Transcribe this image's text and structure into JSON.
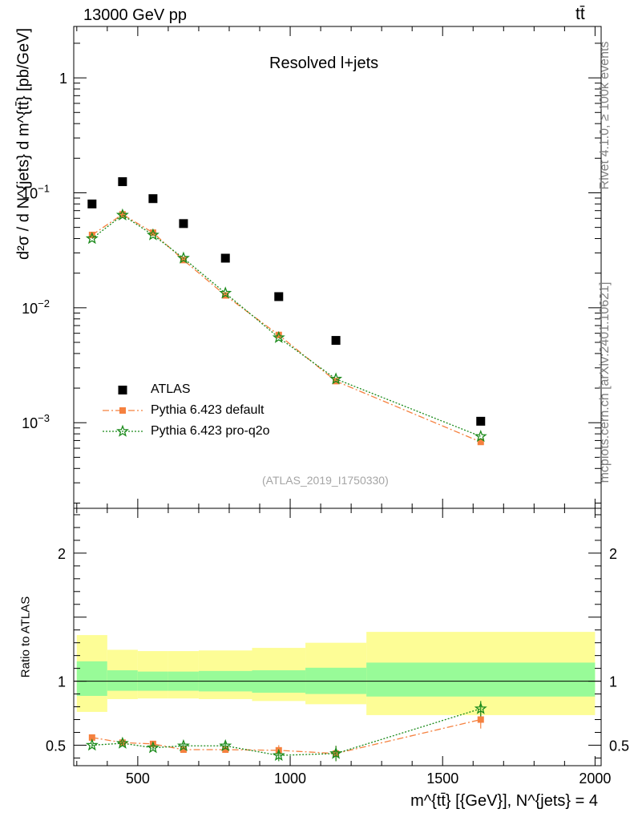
{
  "header": {
    "left": "13000 GeV pp",
    "right": "tt̄"
  },
  "side_labels": {
    "top": "Rivet 4.1.0, ≥ 100k events",
    "bottom": "mcplots.cern.ch [arXiv:2401.10621]"
  },
  "chart_data": [
    {
      "type": "scatter",
      "title": "Resolved l+jets",
      "analysis_id": "(ATLAS_2019_I1750330)",
      "xlabel": "m^{tt̄} [{GeV}], N^{jets} = 4",
      "ylabel": "d²σ / d N^{jets} d m^{tt̄} [pb/GeV]",
      "yscale": "log",
      "xlim": [
        290,
        2020
      ],
      "ylim": [
        0.00018,
        2.8
      ],
      "y_ticks": [
        {
          "value": 0.001,
          "base": "10",
          "exp": "−3"
        },
        {
          "value": 0.01,
          "base": "10",
          "exp": "−2"
        },
        {
          "value": 0.1,
          "base": "10",
          "exp": "−1"
        },
        {
          "value": 1,
          "label": "1"
        }
      ],
      "series": [
        {
          "name": "ATLAS",
          "color": "#000000",
          "marker": "square",
          "x": [
            350,
            450,
            550,
            650,
            787.5,
            962.5,
            1150,
            1625
          ],
          "y": [
            0.08,
            0.125,
            0.089,
            0.054,
            0.027,
            0.0125,
            0.0052,
            0.00103
          ]
        },
        {
          "name": "Pythia 6.423 default",
          "color": "#f5813f",
          "marker": "square",
          "line": "dashdot",
          "x": [
            350,
            450,
            550,
            650,
            787.5,
            962.5,
            1150,
            1625
          ],
          "y": [
            0.043,
            0.065,
            0.045,
            0.026,
            0.0128,
            0.0058,
            0.0023,
            0.00068
          ]
        },
        {
          "name": "Pythia 6.423 pro-q2o",
          "color": "#1a8a1a",
          "marker": "star",
          "line": "dotted",
          "x": [
            350,
            450,
            550,
            650,
            787.5,
            962.5,
            1150,
            1625
          ],
          "y": [
            0.04,
            0.064,
            0.043,
            0.027,
            0.0134,
            0.0055,
            0.0024,
            0.00076
          ]
        }
      ],
      "legend": {
        "position": "lower-left",
        "entries": [
          "ATLAS",
          "Pythia 6.423 default",
          "Pythia 6.423 pro-q2o"
        ]
      }
    },
    {
      "type": "line",
      "ylabel": "Ratio to ATLAS",
      "xlabel": "m^{tt̄} [{GeV}], N^{jets} = 4",
      "xlim": [
        290,
        2020
      ],
      "ylim": [
        0.34,
        2.35
      ],
      "x_ticks": [
        500,
        1000,
        1500,
        2000
      ],
      "y_ticks": [
        0.5,
        1,
        2
      ],
      "bins": [
        {
          "lo": 300,
          "hi": 400,
          "stat_lo": 0.885,
          "stat_hi": 1.155,
          "tot_lo": 0.76,
          "tot_hi": 1.36
        },
        {
          "lo": 400,
          "hi": 500,
          "stat_lo": 0.925,
          "stat_hi": 1.085,
          "tot_lo": 0.86,
          "tot_hi": 1.245
        },
        {
          "lo": 500,
          "hi": 600,
          "stat_lo": 0.925,
          "stat_hi": 1.075,
          "tot_lo": 0.865,
          "tot_hi": 1.235
        },
        {
          "lo": 600,
          "hi": 700,
          "stat_lo": 0.925,
          "stat_hi": 1.075,
          "tot_lo": 0.865,
          "tot_hi": 1.235
        },
        {
          "lo": 700,
          "hi": 875,
          "stat_lo": 0.92,
          "stat_hi": 1.08,
          "tot_lo": 0.86,
          "tot_hi": 1.24
        },
        {
          "lo": 875,
          "hi": 1050,
          "stat_lo": 0.91,
          "stat_hi": 1.085,
          "tot_lo": 0.845,
          "tot_hi": 1.26
        },
        {
          "lo": 1050,
          "hi": 1250,
          "stat_lo": 0.9,
          "stat_hi": 1.105,
          "tot_lo": 0.82,
          "tot_hi": 1.3
        },
        {
          "lo": 1250,
          "hi": 2000,
          "stat_lo": 0.88,
          "stat_hi": 1.145,
          "tot_lo": 0.735,
          "tot_hi": 1.385
        }
      ],
      "series": [
        {
          "name": "Pythia 6.423 default",
          "color": "#f5813f",
          "marker": "square",
          "line": "dashdot",
          "x": [
            350,
            450,
            550,
            650,
            787.5,
            962.5,
            1150,
            1625
          ],
          "y": [
            0.56,
            0.52,
            0.51,
            0.465,
            0.465,
            0.46,
            0.435,
            0.7
          ],
          "err": [
            0.02,
            0.015,
            0.02,
            0.025,
            0.025,
            0.04,
            0.06,
            0.07
          ]
        },
        {
          "name": "Pythia 6.423 pro-q2o",
          "color": "#1a8a1a",
          "marker": "star",
          "line": "dotted",
          "x": [
            350,
            450,
            550,
            650,
            787.5,
            962.5,
            1150,
            1625
          ],
          "y": [
            0.5,
            0.515,
            0.48,
            0.495,
            0.495,
            0.42,
            0.435,
            0.785
          ],
          "err": [
            0.015,
            0.015,
            0.02,
            0.02,
            0.025,
            0.045,
            0.06,
            0.06
          ]
        }
      ]
    }
  ]
}
